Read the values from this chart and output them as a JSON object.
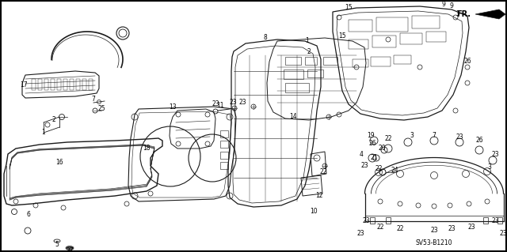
{
  "background_color": "#f5f5f5",
  "border_color": "#000000",
  "diagram_code": "SV53-B1210",
  "fr_label": "FR.",
  "line_color": "#1a1a1a",
  "figsize": [
    6.4,
    3.19
  ],
  "dpi": 100
}
